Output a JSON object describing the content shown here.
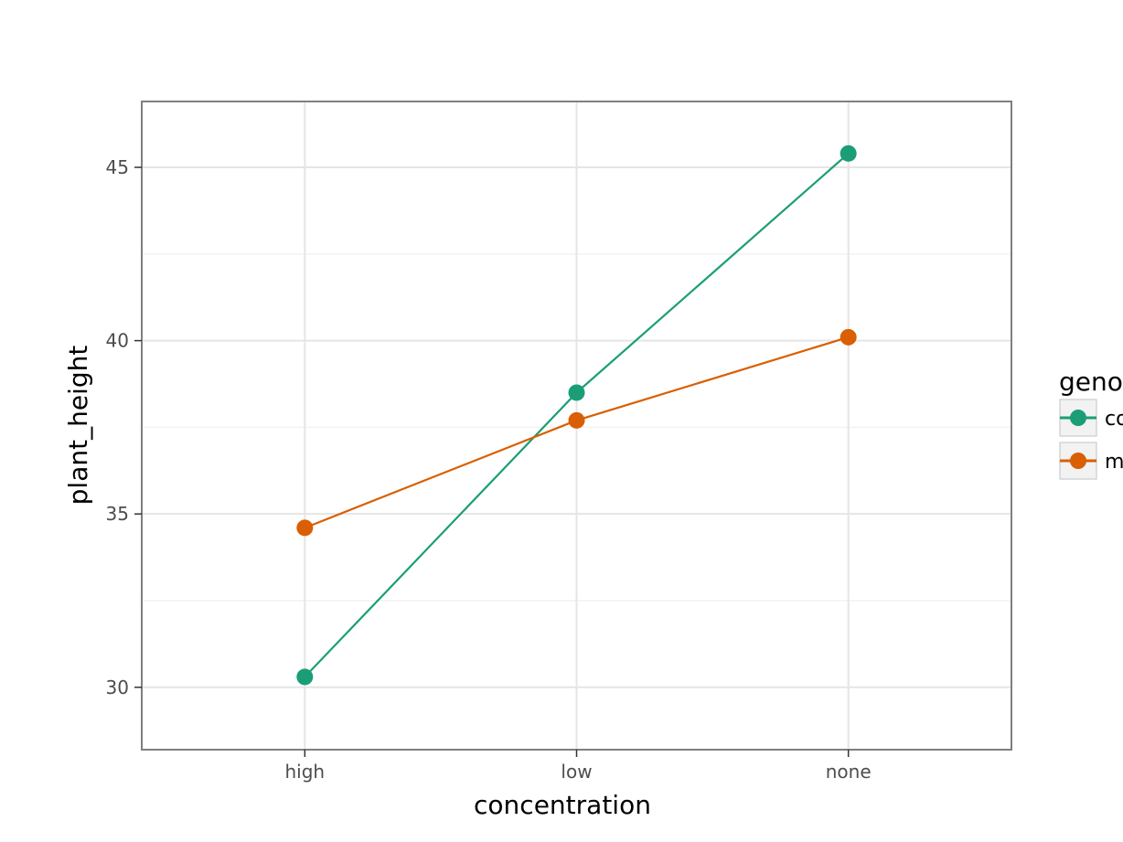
{
  "chart_data": {
    "type": "line",
    "xlabel": "concentration",
    "ylabel": "plant_height",
    "categories": [
      "high",
      "low",
      "none"
    ],
    "yticks": [
      30,
      35,
      40,
      45
    ],
    "ylim": [
      28.2,
      46.9
    ],
    "grid": true,
    "legend": {
      "title": "geno",
      "placement": "right",
      "entries": [
        "co",
        "m"
      ]
    },
    "series": [
      {
        "name": "co",
        "color": "#1b9e77",
        "values": [
          30.3,
          38.5,
          45.4
        ]
      },
      {
        "name": "m",
        "color": "#d95f02",
        "values": [
          34.6,
          37.7,
          40.1
        ]
      }
    ]
  }
}
